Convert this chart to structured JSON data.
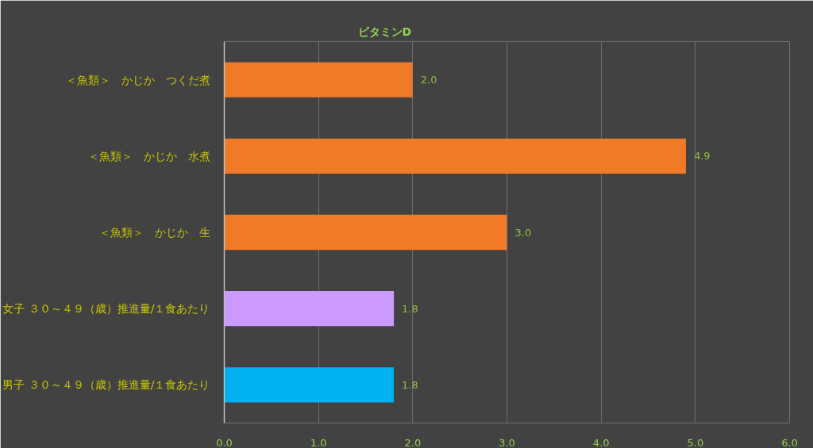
{
  "chart_data": {
    "type": "bar",
    "orientation": "horizontal",
    "title": "ビタミンD",
    "categories": [
      "＜魚類＞　かじか　つくだ煮",
      "＜魚類＞　かじか　水煮",
      "＜魚類＞　かじか　生",
      "女子 ３０～４９（歳）推進量/１食あたり",
      "男子 ３０～４９（歳）推進量/１食あたり"
    ],
    "values": [
      2.0,
      4.9,
      3.0,
      1.8,
      1.8
    ],
    "colors": [
      "#f07a28",
      "#f07a28",
      "#f07a28",
      "#cc99ff",
      "#00b0f0"
    ],
    "value_labels": [
      "2.0",
      "4.9",
      "3.0",
      "1.8",
      "1.8"
    ],
    "xlim": [
      0,
      6
    ],
    "xticks": [
      {
        "value": 0,
        "label": "0.0"
      },
      {
        "value": 1,
        "label": "1.0"
      },
      {
        "value": 2,
        "label": "2.0"
      },
      {
        "value": 3,
        "label": "3.0"
      },
      {
        "value": 4,
        "label": "4.0"
      },
      {
        "value": 5,
        "label": "5.0"
      },
      {
        "value": 6,
        "label": "6.0"
      }
    ],
    "grid": "x"
  }
}
